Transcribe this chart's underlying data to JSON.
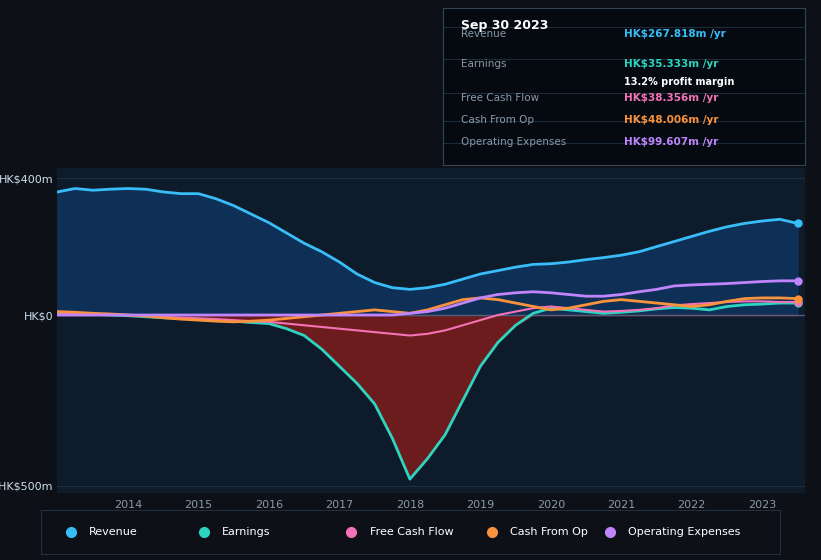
{
  "bg_color": "#0d1117",
  "plot_bg_color": "#0d1b2a",
  "grid_color": "#1e3048",
  "zero_line_color": "#4a6080",
  "tooltip": {
    "date": "Sep 30 2023",
    "revenue_label": "Revenue",
    "revenue_value": "HK$267.818m",
    "revenue_color": "#38bdf8",
    "earnings_label": "Earnings",
    "earnings_value": "HK$35.333m",
    "earnings_color": "#2dd4bf",
    "margin_value": "13.2%",
    "fcf_label": "Free Cash Flow",
    "fcf_value": "HK$38.356m",
    "fcf_color": "#f472b6",
    "cashop_label": "Cash From Op",
    "cashop_value": "HK$48.006m",
    "cashop_color": "#fb923c",
    "opex_label": "Operating Expenses",
    "opex_value": "HK$99.607m",
    "opex_color": "#c084fc"
  },
  "years": [
    2013.0,
    2013.25,
    2013.5,
    2013.75,
    2014.0,
    2014.25,
    2014.5,
    2014.75,
    2015.0,
    2015.25,
    2015.5,
    2015.75,
    2016.0,
    2016.25,
    2016.5,
    2016.75,
    2017.0,
    2017.25,
    2017.5,
    2017.75,
    2018.0,
    2018.25,
    2018.5,
    2018.75,
    2019.0,
    2019.25,
    2019.5,
    2019.75,
    2020.0,
    2020.25,
    2020.5,
    2020.75,
    2021.0,
    2021.25,
    2021.5,
    2021.75,
    2022.0,
    2022.25,
    2022.5,
    2022.75,
    2023.0,
    2023.25,
    2023.5
  ],
  "revenue": [
    360,
    370,
    365,
    368,
    370,
    368,
    360,
    355,
    355,
    340,
    320,
    295,
    270,
    240,
    210,
    185,
    155,
    120,
    95,
    80,
    75,
    80,
    90,
    105,
    120,
    130,
    140,
    148,
    150,
    155,
    162,
    168,
    175,
    185,
    200,
    215,
    230,
    245,
    258,
    268,
    275,
    280,
    268
  ],
  "earnings": [
    5,
    3,
    2,
    0,
    -2,
    -5,
    -8,
    -10,
    -12,
    -15,
    -18,
    -22,
    -25,
    -40,
    -60,
    -100,
    -150,
    -200,
    -260,
    -360,
    -480,
    -420,
    -350,
    -250,
    -150,
    -80,
    -30,
    5,
    20,
    15,
    10,
    5,
    8,
    12,
    18,
    22,
    20,
    15,
    25,
    30,
    32,
    35,
    35
  ],
  "free_cash_flow": [
    8,
    5,
    3,
    2,
    0,
    -2,
    -5,
    -8,
    -10,
    -12,
    -15,
    -18,
    -20,
    -25,
    -30,
    -35,
    -40,
    -45,
    -50,
    -55,
    -60,
    -55,
    -45,
    -30,
    -15,
    0,
    10,
    20,
    25,
    20,
    15,
    10,
    12,
    15,
    20,
    28,
    32,
    35,
    38,
    40,
    40,
    38,
    38
  ],
  "cash_from_op": [
    10,
    8,
    5,
    3,
    0,
    -3,
    -8,
    -12,
    -15,
    -18,
    -20,
    -18,
    -15,
    -10,
    -5,
    0,
    5,
    10,
    15,
    10,
    5,
    15,
    30,
    45,
    50,
    45,
    35,
    25,
    15,
    20,
    30,
    40,
    45,
    40,
    35,
    30,
    25,
    30,
    40,
    48,
    50,
    50,
    48
  ],
  "operating_expenses": [
    0,
    0,
    0,
    0,
    0,
    0,
    0,
    0,
    0,
    0,
    0,
    0,
    0,
    0,
    0,
    0,
    0,
    0,
    0,
    0,
    5,
    10,
    20,
    35,
    50,
    60,
    65,
    68,
    65,
    60,
    55,
    55,
    60,
    68,
    75,
    85,
    88,
    90,
    92,
    95,
    98,
    100,
    100
  ],
  "revenue_color": "#38bdf8",
  "earnings_color": "#2dd4bf",
  "fcf_color": "#f472b6",
  "cashop_color": "#fb923c",
  "opex_color": "#c084fc",
  "revenue_fill_color": "#0f3460",
  "earnings_fill_neg_color": "#7f1d1d",
  "ylim": [
    -520,
    430
  ],
  "yticks": [
    -500,
    0,
    400
  ],
  "ytick_labels": [
    "-HK$500m",
    "HK$0",
    "HK$400m"
  ],
  "xticks": [
    2014,
    2015,
    2016,
    2017,
    2018,
    2019,
    2020,
    2021,
    2022,
    2023
  ],
  "legend_items": [
    {
      "label": "Revenue",
      "color": "#38bdf8"
    },
    {
      "label": "Earnings",
      "color": "#2dd4bf"
    },
    {
      "label": "Free Cash Flow",
      "color": "#f472b6"
    },
    {
      "label": "Cash From Op",
      "color": "#fb923c"
    },
    {
      "label": "Operating Expenses",
      "color": "#c084fc"
    }
  ]
}
